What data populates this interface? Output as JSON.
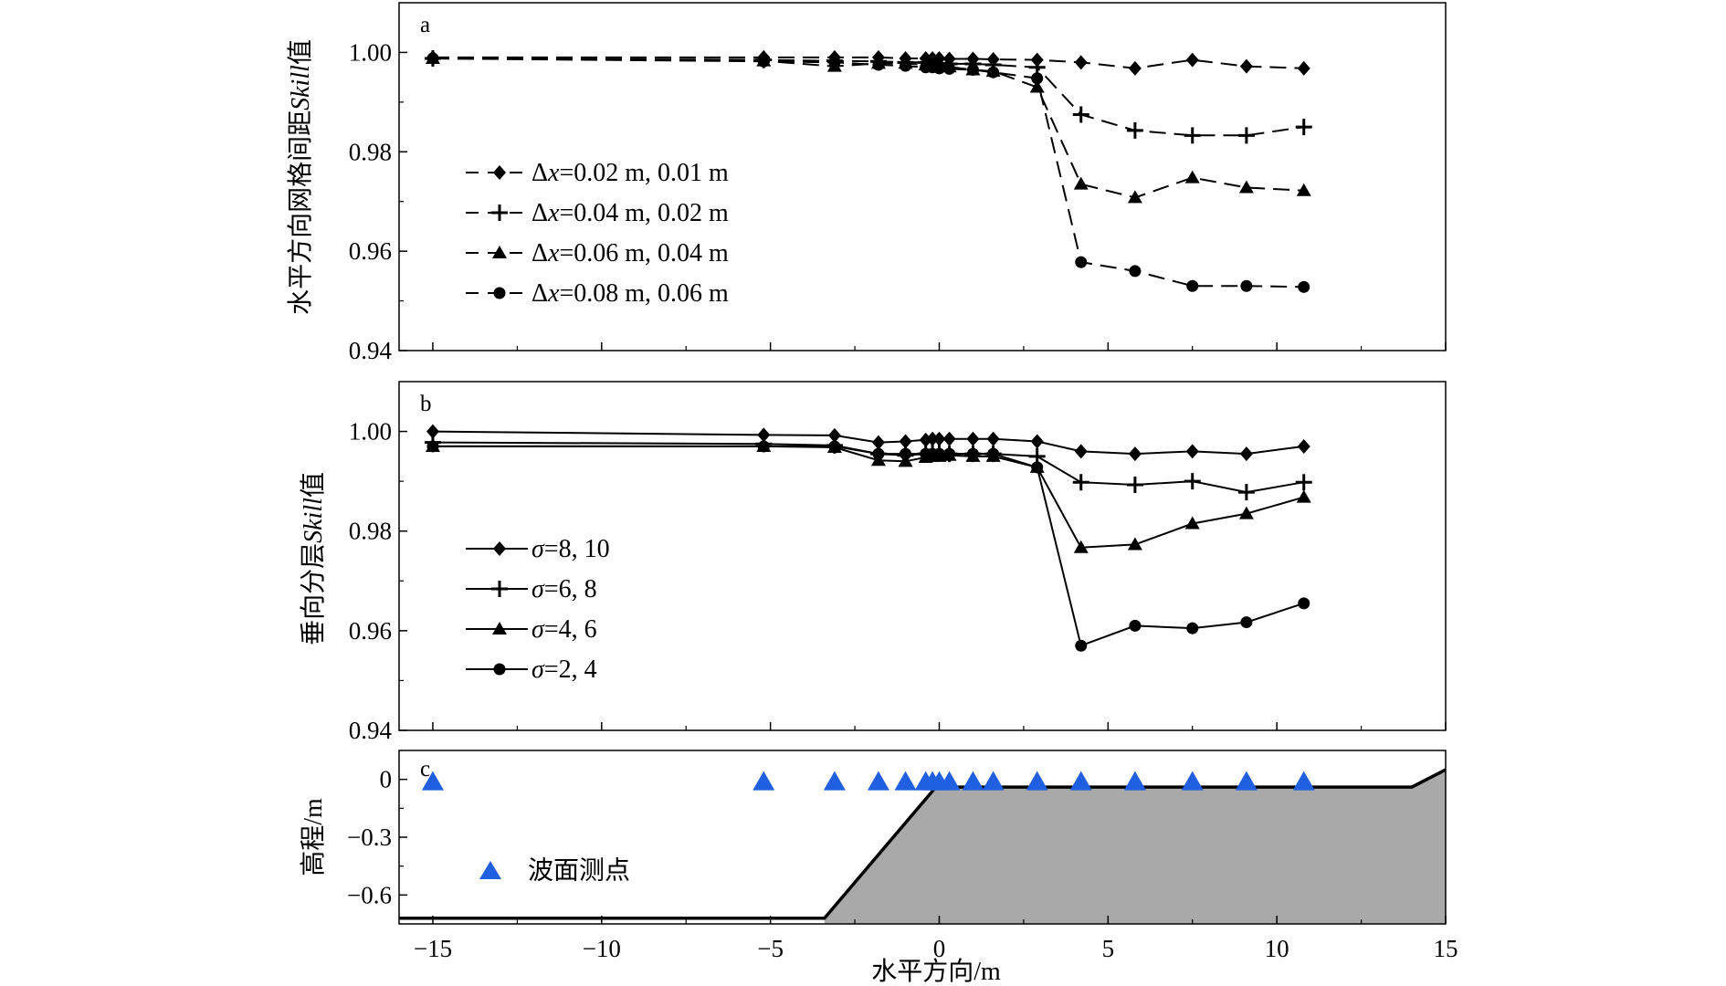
{
  "chart_data": [
    {
      "panel": "a",
      "type": "line",
      "ylabel_prefix": "水平方向网格间距",
      "ylabel_italic": "Skill",
      "ylabel_suffix": "值",
      "ylim": [
        0.94,
        1.01
      ],
      "yticks": [
        0.94,
        0.96,
        0.98,
        1.0
      ],
      "ytick_labels": [
        "0.94",
        "0.96",
        "0.98",
        "1.00"
      ],
      "xlim": [
        -16,
        15
      ],
      "line_style": "dashed",
      "x": [
        -15,
        -5.2,
        -3.1,
        -1.8,
        -1.0,
        -0.4,
        -0.2,
        0.0,
        0.3,
        1.0,
        1.6,
        2.9,
        4.2,
        5.8,
        7.5,
        9.1,
        10.8
      ],
      "series": [
        {
          "name_prefix": "Δ",
          "name_var": "x",
          "name_rest": "=0.02 m, 0.01 m",
          "marker": "diamond",
          "values": [
            0.999,
            0.999,
            0.999,
            0.999,
            0.9988,
            0.9988,
            0.9988,
            0.9988,
            0.9987,
            0.9987,
            0.9986,
            0.9985,
            0.998,
            0.9968,
            0.9985,
            0.9972,
            0.9968
          ]
        },
        {
          "name_prefix": "Δ",
          "name_var": "x",
          "name_rest": "=0.04 m, 0.02 m",
          "marker": "plus",
          "values": [
            0.9988,
            0.9985,
            0.9983,
            0.9982,
            0.998,
            0.998,
            0.998,
            0.9978,
            0.9977,
            0.9977,
            0.9975,
            0.997,
            0.9875,
            0.9843,
            0.9833,
            0.9833,
            0.985
          ]
        },
        {
          "name_prefix": "Δ",
          "name_var": "x",
          "name_rest": "=0.06 m, 0.04 m",
          "marker": "triangle",
          "values": [
            0.9988,
            0.9983,
            0.9972,
            0.9978,
            0.9978,
            0.9975,
            0.9973,
            0.9972,
            0.9971,
            0.9965,
            0.9962,
            0.993,
            0.9735,
            0.9708,
            0.9748,
            0.9728,
            0.9722
          ]
        },
        {
          "name_prefix": "Δ",
          "name_var": "x",
          "name_rest": "=0.08 m, 0.06 m",
          "marker": "circle",
          "values": [
            0.9988,
            0.9982,
            0.998,
            0.9975,
            0.9973,
            0.997,
            0.997,
            0.9968,
            0.9967,
            0.9965,
            0.996,
            0.9948,
            0.9578,
            0.956,
            0.953,
            0.953,
            0.9528
          ]
        }
      ]
    },
    {
      "panel": "b",
      "type": "line",
      "ylabel_prefix": "垂向分层",
      "ylabel_italic": "Skill",
      "ylabel_suffix": "值",
      "ylim": [
        0.94,
        1.01
      ],
      "yticks": [
        0.94,
        0.96,
        0.98,
        1.0
      ],
      "ytick_labels": [
        "0.94",
        "0.96",
        "0.98",
        "1.00"
      ],
      "xlim": [
        -16,
        15
      ],
      "line_style": "solid",
      "x": [
        -15,
        -5.2,
        -3.1,
        -1.8,
        -1.0,
        -0.4,
        -0.2,
        0.0,
        0.3,
        1.0,
        1.6,
        2.9,
        4.2,
        5.8,
        7.5,
        9.1,
        10.8
      ],
      "series": [
        {
          "name_var": "σ",
          "name_rest": "=8, 10",
          "marker": "diamond",
          "values": [
            1.0,
            0.9993,
            0.9992,
            0.9978,
            0.998,
            0.9983,
            0.9985,
            0.9985,
            0.9985,
            0.9985,
            0.9985,
            0.998,
            0.996,
            0.9955,
            0.996,
            0.9955,
            0.997
          ]
        },
        {
          "name_var": "σ",
          "name_rest": "=6, 8",
          "marker": "plus",
          "values": [
            0.9978,
            0.9975,
            0.9972,
            0.9955,
            0.9952,
            0.9955,
            0.9957,
            0.9957,
            0.9955,
            0.9955,
            0.9955,
            0.995,
            0.9898,
            0.9893,
            0.99,
            0.9878,
            0.9898
          ]
        },
        {
          "name_var": "σ",
          "name_rest": "=4, 6",
          "marker": "triangle",
          "values": [
            0.997,
            0.997,
            0.9968,
            0.9942,
            0.994,
            0.9948,
            0.995,
            0.995,
            0.9952,
            0.995,
            0.995,
            0.9928,
            0.9767,
            0.9773,
            0.9815,
            0.9835,
            0.9868
          ]
        },
        {
          "name_var": "σ",
          "name_rest": "=2, 4",
          "marker": "circle",
          "values": [
            0.997,
            0.997,
            0.997,
            0.9955,
            0.9955,
            0.9955,
            0.9955,
            0.9955,
            0.9955,
            0.9955,
            0.9955,
            0.9928,
            0.957,
            0.961,
            0.9605,
            0.9617,
            0.9655
          ]
        }
      ]
    },
    {
      "panel": "c",
      "type": "area",
      "ylabel": "高程/m",
      "xlabel": "水平方向/m",
      "ylim": [
        -0.75,
        0.15
      ],
      "yticks": [
        -0.6,
        -0.3,
        0
      ],
      "ytick_labels": [
        "−0.6",
        "−0.3",
        "0"
      ],
      "xlim": [
        -16,
        15
      ],
      "xticks": [
        -15,
        -10,
        -5,
        0,
        5,
        10,
        15
      ],
      "xtick_labels": [
        "−15",
        "−10",
        "−5",
        "0",
        "5",
        "10",
        "15"
      ],
      "bathymetry": {
        "x": [
          -16,
          -3.4,
          -0.1,
          14.0,
          15.0
        ],
        "y": [
          -0.72,
          -0.72,
          -0.04,
          -0.04,
          0.05
        ],
        "fill": "#a9a9a9"
      },
      "gauges": {
        "name": "波面测点",
        "color": "#1f5fe0",
        "marker": "triangle",
        "x": [
          -15,
          -5.2,
          -3.1,
          -1.8,
          -1.0,
          -0.4,
          -0.2,
          0.0,
          0.3,
          1.0,
          1.6,
          2.9,
          4.2,
          5.8,
          7.5,
          9.1,
          10.8
        ],
        "y": 0
      }
    }
  ]
}
